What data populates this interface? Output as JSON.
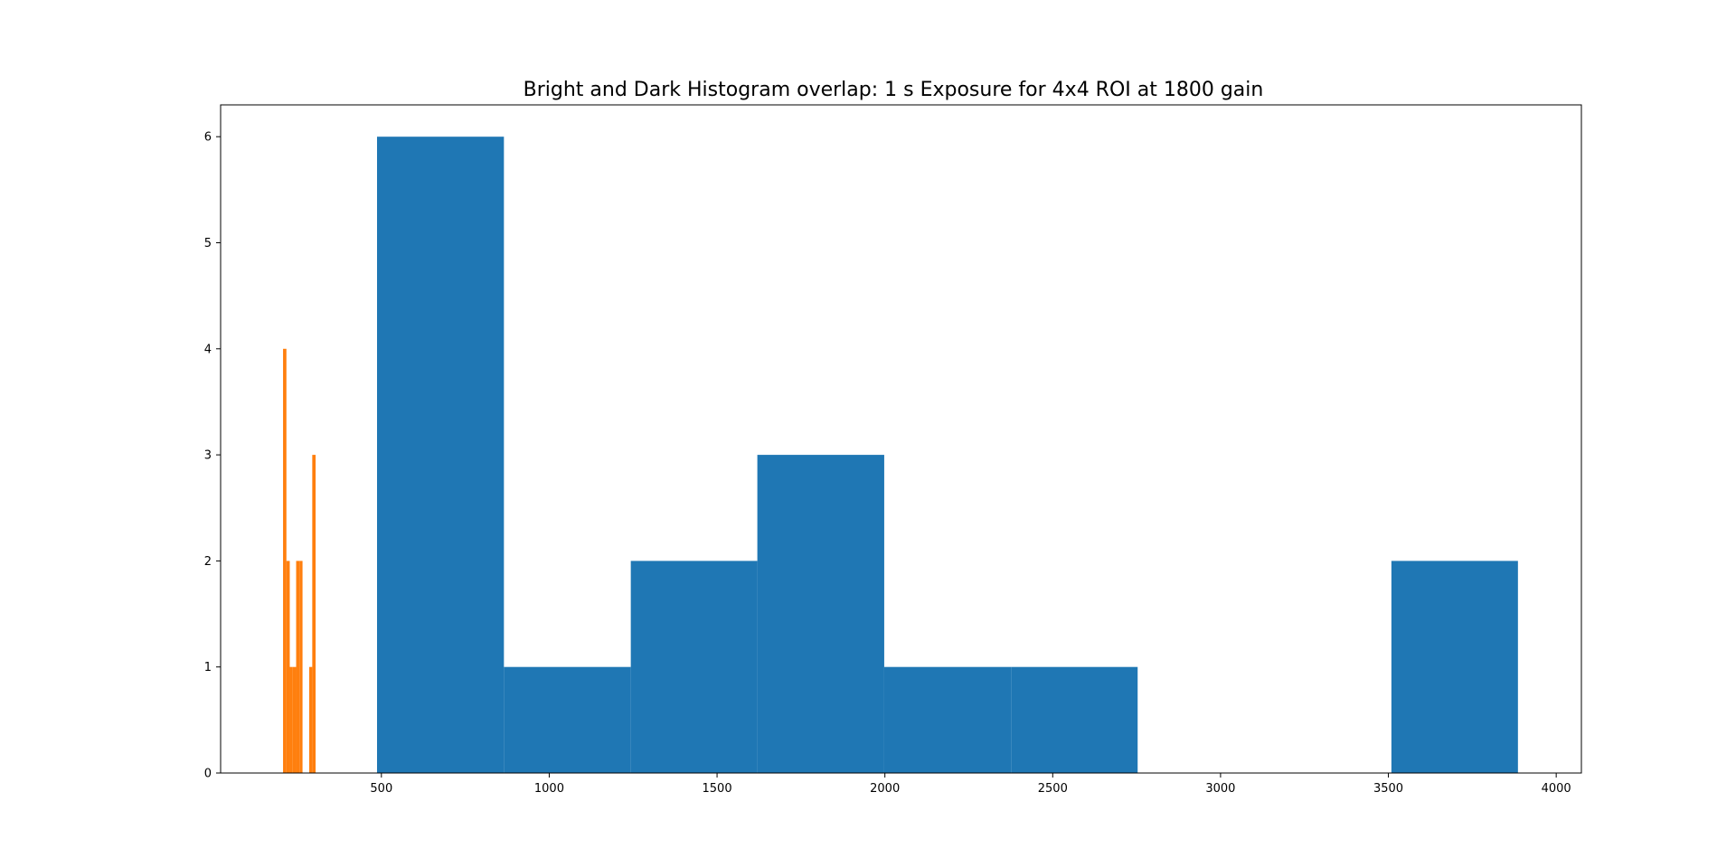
{
  "chart_data": {
    "type": "bar",
    "title": "Bright and Dark Histogram overlap: 1 s Exposure for 4x4 ROI at 1800 gain",
    "xlabel": "",
    "ylabel": "",
    "xlim": [
      21,
      4075
    ],
    "ylim": [
      0,
      6.3
    ],
    "xticks": [
      500,
      1000,
      1500,
      2000,
      2500,
      3000,
      3500,
      4000
    ],
    "yticks": [
      0,
      1,
      2,
      3,
      4,
      5,
      6
    ],
    "grid": false,
    "legend": "none",
    "series": [
      {
        "color": "#1f77b4",
        "bins": [
          {
            "x0": 487,
            "x1": 865,
            "count": 6
          },
          {
            "x0": 865,
            "x1": 1243,
            "count": 1
          },
          {
            "x0": 1243,
            "x1": 1620,
            "count": 2
          },
          {
            "x0": 1620,
            "x1": 1998,
            "count": 3
          },
          {
            "x0": 1998,
            "x1": 2376,
            "count": 1
          },
          {
            "x0": 2376,
            "x1": 2753,
            "count": 1
          },
          {
            "x0": 2753,
            "x1": 3131,
            "count": 0
          },
          {
            "x0": 3131,
            "x1": 3509,
            "count": 0
          },
          {
            "x0": 3509,
            "x1": 3886,
            "count": 2
          }
        ]
      },
      {
        "color": "#ff7f0e",
        "bins": [
          {
            "x0": 207,
            "x1": 217,
            "count": 4
          },
          {
            "x0": 217,
            "x1": 227,
            "count": 2
          },
          {
            "x0": 227,
            "x1": 236,
            "count": 1
          },
          {
            "x0": 236,
            "x1": 246,
            "count": 1
          },
          {
            "x0": 246,
            "x1": 256,
            "count": 2
          },
          {
            "x0": 256,
            "x1": 265,
            "count": 2
          },
          {
            "x0": 265,
            "x1": 275,
            "count": 0
          },
          {
            "x0": 275,
            "x1": 285,
            "count": 0
          },
          {
            "x0": 285,
            "x1": 294,
            "count": 1
          },
          {
            "x0": 294,
            "x1": 304,
            "count": 3
          }
        ]
      }
    ]
  }
}
